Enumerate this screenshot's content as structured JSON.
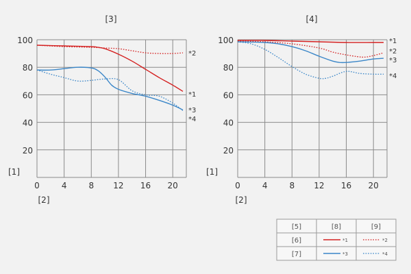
{
  "chart_data": [
    {
      "type": "line",
      "title": "[3]",
      "ylabel": "[1]",
      "xlabel": "[2]",
      "xlim": [
        0,
        22
      ],
      "ylim": [
        0,
        100
      ],
      "xticks": [
        0,
        4,
        8,
        12,
        16,
        20
      ],
      "yticks": [
        20,
        40,
        60,
        80,
        100
      ],
      "grid": true,
      "series": [
        {
          "name": "*1",
          "color": "#d42020",
          "style": "solid",
          "x": [
            0,
            4,
            8,
            9,
            10,
            12,
            14,
            16,
            18,
            20,
            21.5
          ],
          "y": [
            96,
            95.5,
            95,
            94.5,
            93.5,
            89.5,
            84.5,
            78.5,
            72.5,
            67,
            62.5
          ]
        },
        {
          "name": "*2",
          "color": "#d42020",
          "style": "dotted",
          "x": [
            0,
            4,
            8,
            10,
            12,
            14,
            16,
            18,
            20,
            21.5
          ],
          "y": [
            96,
            95,
            94.5,
            94,
            93.5,
            92,
            90.5,
            90,
            90,
            90.5
          ]
        },
        {
          "name": "*3",
          "color": "#3a86c8",
          "style": "solid",
          "x": [
            0,
            2,
            4,
            6,
            8,
            9,
            10,
            11,
            12,
            14,
            16,
            18,
            20,
            21.5
          ],
          "y": [
            78,
            78,
            79,
            80,
            79.5,
            77.5,
            73,
            67,
            64,
            61,
            59,
            56,
            52.5,
            49
          ]
        },
        {
          "name": "*4",
          "color": "#3a86c8",
          "style": "dotted",
          "x": [
            0,
            2,
            4,
            6,
            8,
            10,
            12,
            14,
            16,
            18,
            20,
            21.5
          ],
          "y": [
            78,
            75,
            72.5,
            70,
            70.5,
            71.5,
            71,
            63,
            60,
            59,
            54,
            48.5
          ]
        }
      ]
    },
    {
      "type": "line",
      "title": "[4]",
      "ylabel": "[1]",
      "xlabel": "[2]",
      "xlim": [
        0,
        22
      ],
      "ylim": [
        0,
        100
      ],
      "xticks": [
        0,
        4,
        8,
        12,
        16,
        20
      ],
      "yticks": [
        20,
        40,
        60,
        80,
        100
      ],
      "grid": true,
      "series": [
        {
          "name": "*1",
          "color": "#d42020",
          "style": "solid",
          "x": [
            0,
            4,
            8,
            12,
            16,
            20,
            21.5
          ],
          "y": [
            99.5,
            99.5,
            99,
            98.5,
            98,
            98,
            98
          ]
        },
        {
          "name": "*2",
          "color": "#d42020",
          "style": "dotted",
          "x": [
            0,
            4,
            8,
            12,
            14,
            16,
            18,
            19,
            20,
            21.5
          ],
          "y": [
            99,
            98.5,
            97,
            94,
            91,
            89,
            87.5,
            87.5,
            88.5,
            90.5
          ]
        },
        {
          "name": "*3",
          "color": "#3a86c8",
          "style": "solid",
          "x": [
            0,
            4,
            6,
            8,
            10,
            12,
            14,
            15,
            16,
            18,
            20,
            21.5
          ],
          "y": [
            98.5,
            98,
            97,
            95,
            92,
            88,
            84.5,
            83.5,
            83.5,
            84.5,
            86,
            86.5
          ]
        },
        {
          "name": "*4",
          "color": "#3a86c8",
          "style": "dotted",
          "x": [
            0,
            2,
            4,
            6,
            8,
            10,
            12,
            13,
            14,
            16,
            18,
            20,
            21.5
          ],
          "y": [
            98.5,
            97,
            93,
            87,
            80.5,
            75,
            72,
            72,
            73.5,
            77,
            75.5,
            75,
            75
          ]
        }
      ]
    }
  ],
  "legend": {
    "headers": [
      "",
      "[8]",
      "[9]"
    ],
    "rows": [
      {
        "label": "[6]",
        "solid": "*1",
        "dotted": "*2",
        "color": "#d42020"
      },
      {
        "label": "[7]",
        "solid": "*3",
        "dotted": "*4",
        "color": "#3a86c8"
      }
    ],
    "corner": "[5]"
  }
}
